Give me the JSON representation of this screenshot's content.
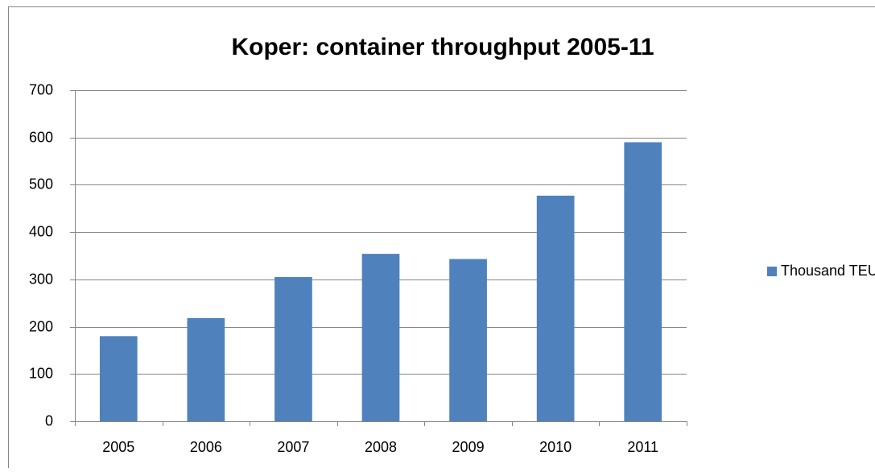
{
  "chart_data": {
    "type": "bar",
    "title": "Koper:  container throughput 2005-11",
    "categories": [
      "2005",
      "2006",
      "2007",
      "2008",
      "2009",
      "2010",
      "2011"
    ],
    "series": [
      {
        "name": "Thousand TEU",
        "color": "#4f81bd",
        "values": [
          180,
          218,
          305,
          354,
          343,
          477,
          590
        ]
      }
    ],
    "ylim": [
      0,
      700
    ],
    "yticks": [
      0,
      100,
      200,
      300,
      400,
      500,
      600,
      700
    ],
    "grid": true,
    "legend": "right"
  }
}
